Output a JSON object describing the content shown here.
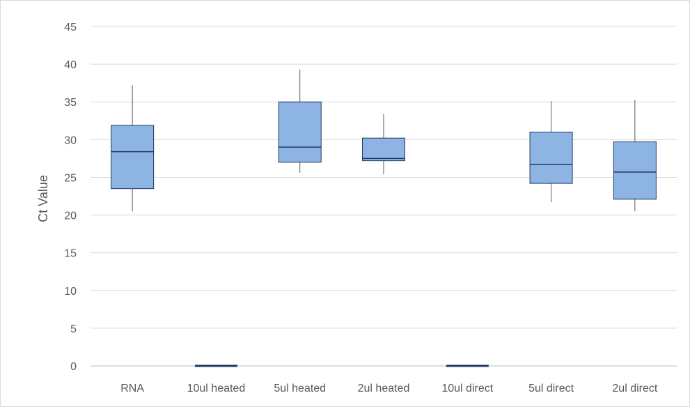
{
  "chart_data": {
    "type": "box",
    "ylabel": "Ct Value",
    "ylim": [
      0,
      45
    ],
    "y_ticks": [
      0,
      5,
      10,
      15,
      20,
      25,
      30,
      35,
      40,
      45
    ],
    "grid": true,
    "box_color": "#8db4e2",
    "box_edge_color": "#1f3864",
    "categories": [
      "RNA",
      "10ul heated",
      "5ul heated",
      "2ul heated",
      "10ul direct",
      "5ul direct",
      "2ul direct"
    ],
    "boxes": [
      {
        "category": "RNA",
        "min": 20.5,
        "q1": 23.5,
        "median": 28.4,
        "q3": 31.9,
        "max": 37.2
      },
      {
        "category": "10ul heated",
        "min": 0,
        "q1": 0,
        "median": 0,
        "q3": 0,
        "max": 0
      },
      {
        "category": "5ul heated",
        "min": 25.6,
        "q1": 27.0,
        "median": 29.0,
        "q3": 35.0,
        "max": 39.3
      },
      {
        "category": "2ul heated",
        "min": 25.4,
        "q1": 27.2,
        "median": 27.5,
        "q3": 30.2,
        "max": 33.4
      },
      {
        "category": "10ul direct",
        "min": 0,
        "q1": 0,
        "median": 0,
        "q3": 0,
        "max": 0
      },
      {
        "category": "5ul direct",
        "min": 21.7,
        "q1": 24.2,
        "median": 26.7,
        "q3": 31.0,
        "max": 35.1
      },
      {
        "category": "2ul direct",
        "min": 20.5,
        "q1": 22.1,
        "median": 25.7,
        "q3": 29.7,
        "max": 35.3
      }
    ]
  }
}
